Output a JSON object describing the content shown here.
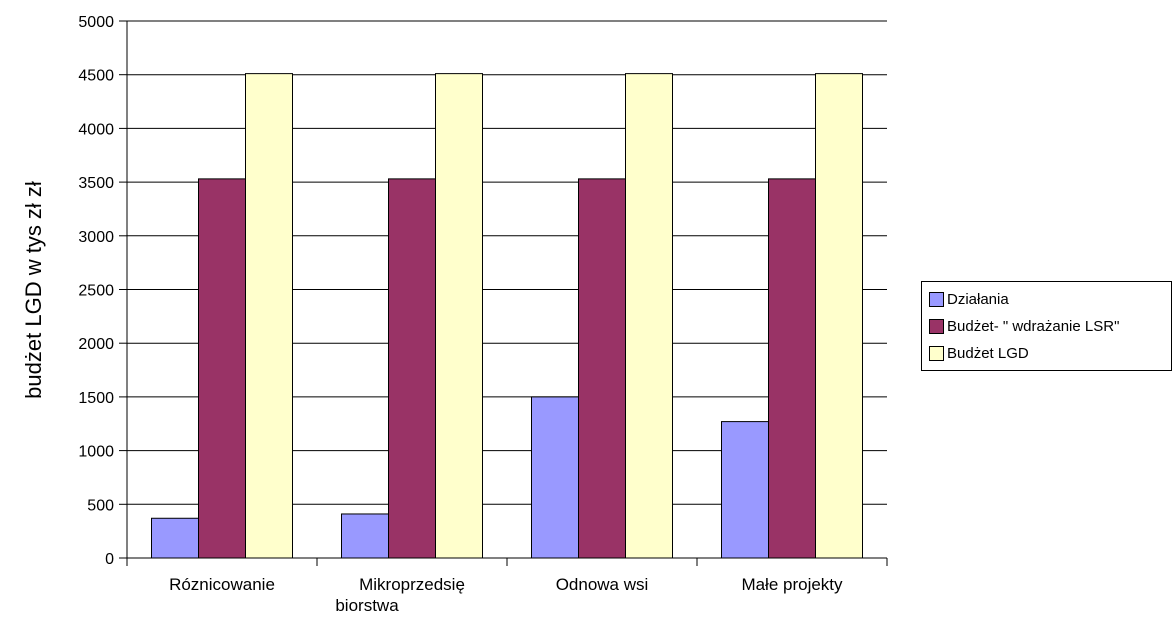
{
  "chart_data": {
    "type": "bar",
    "title": "",
    "xlabel": "",
    "ylabel": "budżet LGD w tys zł zł",
    "ylim": [
      0,
      5000
    ],
    "yticks": [
      0,
      500,
      1000,
      1500,
      2000,
      2500,
      3000,
      3500,
      4000,
      4500,
      5000
    ],
    "grid": true,
    "legend_position": "right",
    "categories": [
      [
        "Róznicowanie"
      ],
      [
        "Mikroprzedsię",
        "biorstwa"
      ],
      [
        "Odnowa wsi"
      ],
      [
        "Małe projekty"
      ]
    ],
    "series": [
      {
        "name": "Działania",
        "color": "#9999ff",
        "values": [
          370,
          410,
          1500,
          1270
        ]
      },
      {
        "name": "Budżet- \" wdrażanie LSR\"",
        "color": "#993366",
        "values": [
          3530,
          3530,
          3530,
          3530
        ]
      },
      {
        "name": "Budżet LGD",
        "color": "#ffffcc",
        "values": [
          4510,
          4510,
          4510,
          4510
        ]
      }
    ]
  }
}
